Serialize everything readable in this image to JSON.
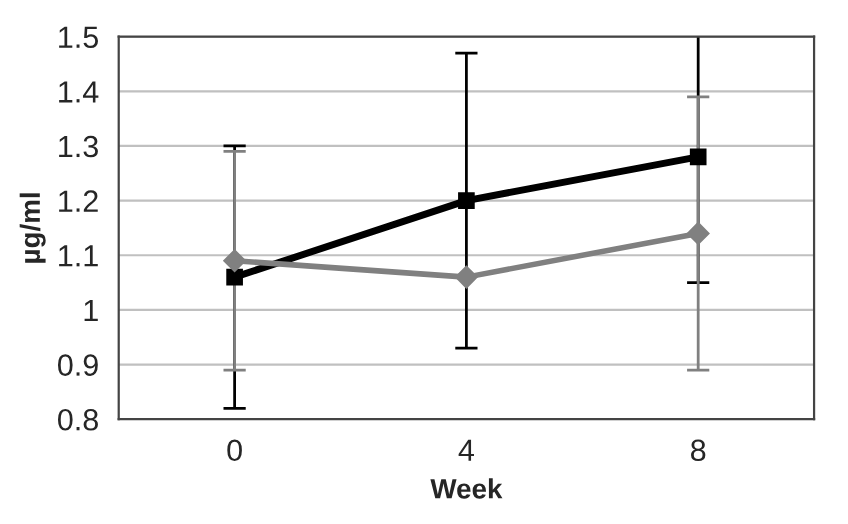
{
  "chart_data": {
    "type": "line",
    "xlabel": "Week",
    "ylabel": "µg/ml",
    "categories": [
      "0",
      "4",
      "8"
    ],
    "series": [
      {
        "color": "#000000",
        "marker": "square",
        "values": [
          1.06,
          1.2,
          1.28
        ],
        "errors": [
          0.24,
          0.27,
          0.23
        ]
      },
      {
        "color": "#808080",
        "marker": "diamond",
        "values": [
          1.09,
          1.06,
          1.14
        ],
        "errors": [
          0.2,
          null,
          0.25
        ]
      }
    ],
    "ylim": [
      0.8,
      1.5
    ],
    "yticks": [
      0.8,
      0.9,
      1,
      1.1,
      1.2,
      1.3,
      1.4,
      1.5
    ],
    "grid": "y"
  }
}
